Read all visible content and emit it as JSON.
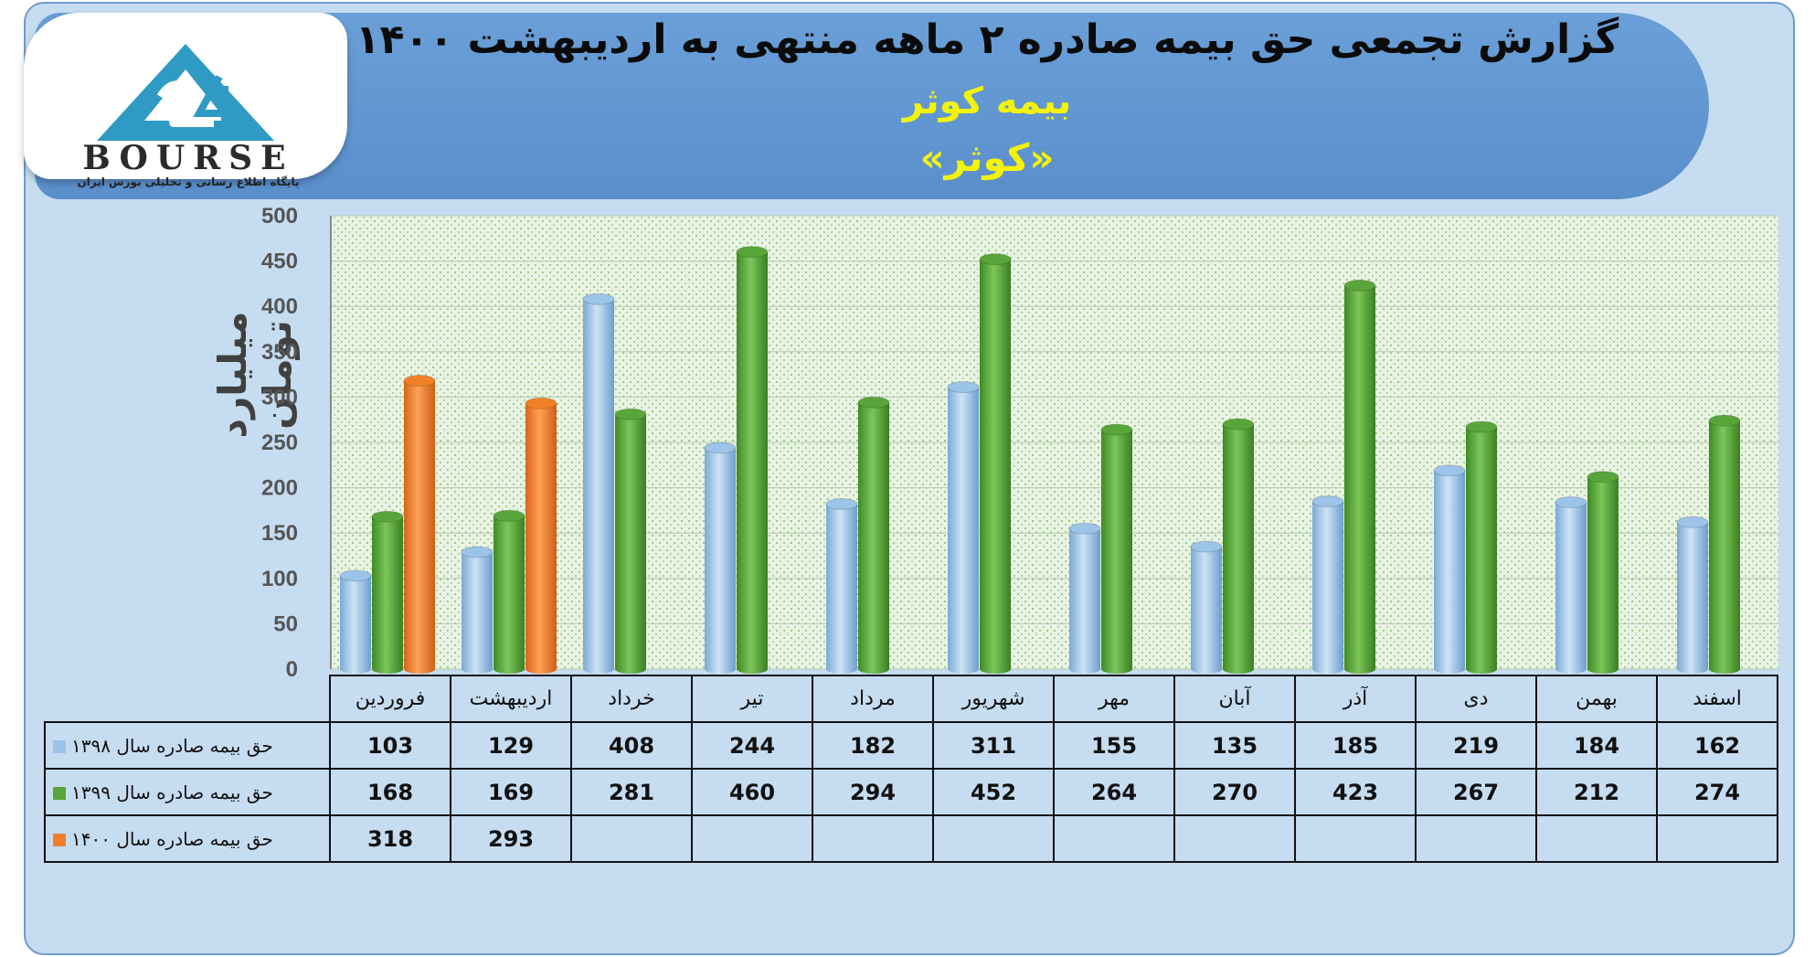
{
  "title": "گزارش تجمعی حق بیمه صادره ۲ ماهه منتهی به اردیبهشت ۱۴۰۰",
  "subtitle": "بیمه کوثر",
  "symbol": "«کوثر»",
  "logo": {
    "word": "BOURSE",
    "tagline": "پایگاه اطلاع رسانی و تحلیلی بورس ایران"
  },
  "colors": {
    "banner": "#5f95d2",
    "background": "#c6dcf0",
    "series_1398": "#9cc3e8",
    "series_1399": "#5aa53a",
    "series_1400": "#f08028"
  },
  "chart_data": {
    "type": "bar",
    "ylabel": "میلیارد تومان",
    "ylim": [
      0,
      500
    ],
    "yticks": [
      0,
      50,
      100,
      150,
      200,
      250,
      300,
      350,
      400,
      450,
      500
    ],
    "grid": true,
    "categories": [
      "فروردین",
      "اردیبهشت",
      "خرداد",
      "تیر",
      "مرداد",
      "شهریور",
      "مهر",
      "آبان",
      "آذر",
      "دی",
      "بهمن",
      "اسفند"
    ],
    "series": [
      {
        "name": "حق بیمه صادره سال ۱۳۹۸",
        "color": "#9cc3e8",
        "values": [
          103,
          129,
          408,
          244,
          182,
          311,
          155,
          135,
          185,
          219,
          184,
          162
        ]
      },
      {
        "name": "حق بیمه صادره سال ۱۳۹۹",
        "color": "#5aa53a",
        "values": [
          168,
          169,
          281,
          460,
          294,
          452,
          264,
          270,
          423,
          267,
          212,
          274
        ]
      },
      {
        "name": "حق بیمه صادره سال ۱۴۰۰",
        "color": "#f08028",
        "values": [
          318,
          293,
          null,
          null,
          null,
          null,
          null,
          null,
          null,
          null,
          null,
          null
        ]
      }
    ]
  }
}
